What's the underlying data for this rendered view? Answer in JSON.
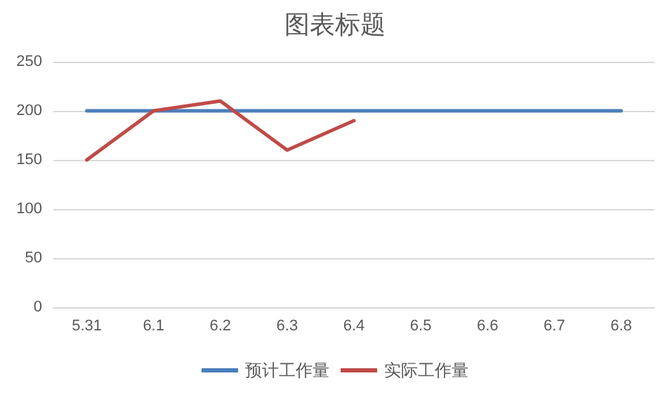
{
  "chart_data": {
    "type": "line",
    "title": "图表标题",
    "categories": [
      "5.31",
      "6.1",
      "6.2",
      "6.3",
      "6.4",
      "6.5",
      "6.6",
      "6.7",
      "6.8"
    ],
    "series": [
      {
        "name": "预计工作量",
        "color": "#4a7ebb",
        "values": [
          200,
          200,
          200,
          200,
          200,
          200,
          200,
          200,
          200
        ]
      },
      {
        "name": "实际工作量",
        "color": "#be4b48",
        "values": [
          150,
          200,
          210,
          160,
          190,
          null,
          null,
          null,
          null
        ]
      }
    ],
    "ylim": [
      0,
      250
    ],
    "yticks": [
      0,
      50,
      100,
      150,
      200,
      250
    ],
    "grid": "y",
    "legend": "bottom",
    "marker": "none",
    "line_style": "solid"
  }
}
